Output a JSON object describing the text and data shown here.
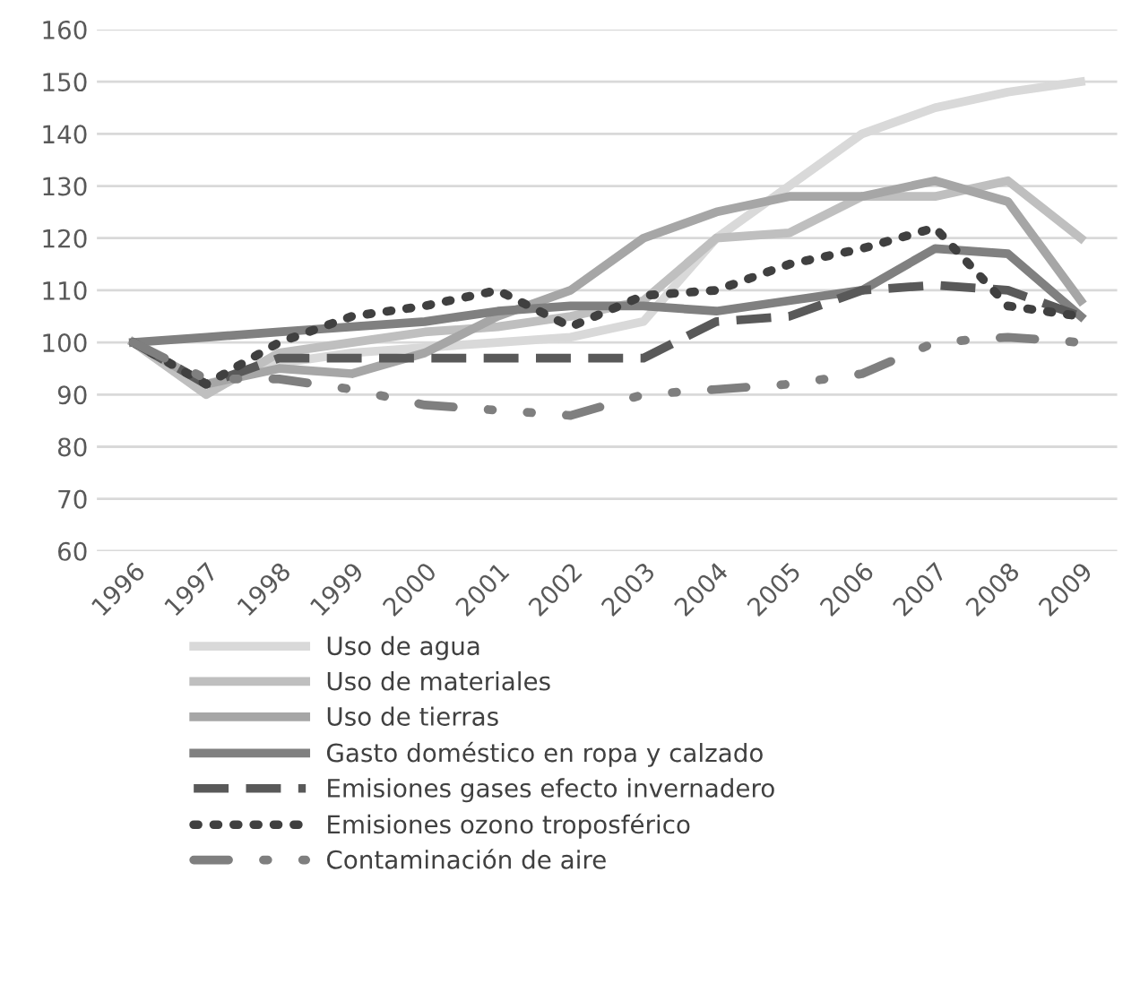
{
  "chart_data": {
    "type": "line",
    "categories": [
      "1996",
      "1997",
      "1998",
      "1999",
      "2000",
      "2001",
      "2002",
      "2003",
      "2004",
      "2005",
      "2006",
      "2007",
      "2008",
      "2009"
    ],
    "ylim": [
      60,
      160
    ],
    "yticks": [
      60,
      70,
      80,
      90,
      100,
      110,
      120,
      130,
      140,
      150,
      160
    ],
    "grid": "y",
    "legend": "bottom",
    "series": [
      {
        "name": "Uso de agua",
        "color": "#d9d9d9",
        "line_style": "solid",
        "values": [
          100,
          92,
          96,
          98,
          99,
          100,
          101,
          104,
          120,
          130,
          140,
          145,
          148,
          150
        ]
      },
      {
        "name": "Uso de materiales",
        "color": "#bfbfbf",
        "line_style": "solid",
        "values": [
          100,
          90,
          98,
          100,
          102,
          103,
          105,
          108,
          120,
          121,
          128,
          128,
          131,
          120
        ]
      },
      {
        "name": "Uso de tierras",
        "color": "#a6a6a6",
        "line_style": "solid",
        "values": [
          100,
          92,
          95,
          94,
          98,
          105,
          110,
          120,
          125,
          128,
          128,
          131,
          127,
          108
        ]
      },
      {
        "name": "Gasto doméstico en ropa y calzado",
        "color": "#808080",
        "line_style": "solid",
        "values": [
          100,
          101,
          102,
          103,
          104,
          106,
          107,
          107,
          106,
          108,
          110,
          118,
          117,
          105
        ]
      },
      {
        "name": "Emisiones gases efecto invernadero",
        "color": "#595959",
        "line_style": "dashed",
        "values": [
          100,
          92,
          97,
          97,
          97,
          97,
          97,
          97,
          104,
          105,
          110,
          111,
          110,
          105
        ]
      },
      {
        "name": "Emisiones ozono troposférico",
        "color": "#404040",
        "line_style": "dotted",
        "values": [
          100,
          92,
          100,
          105,
          107,
          110,
          103,
          109,
          110,
          115,
          118,
          122,
          107,
          105
        ]
      },
      {
        "name": "Contaminación de aire",
        "color": "#7f7f7f",
        "line_style": "dashdot",
        "values": [
          100,
          93,
          93,
          91,
          88,
          87,
          86,
          90,
          91,
          92,
          94,
          100,
          101,
          100
        ]
      }
    ]
  }
}
